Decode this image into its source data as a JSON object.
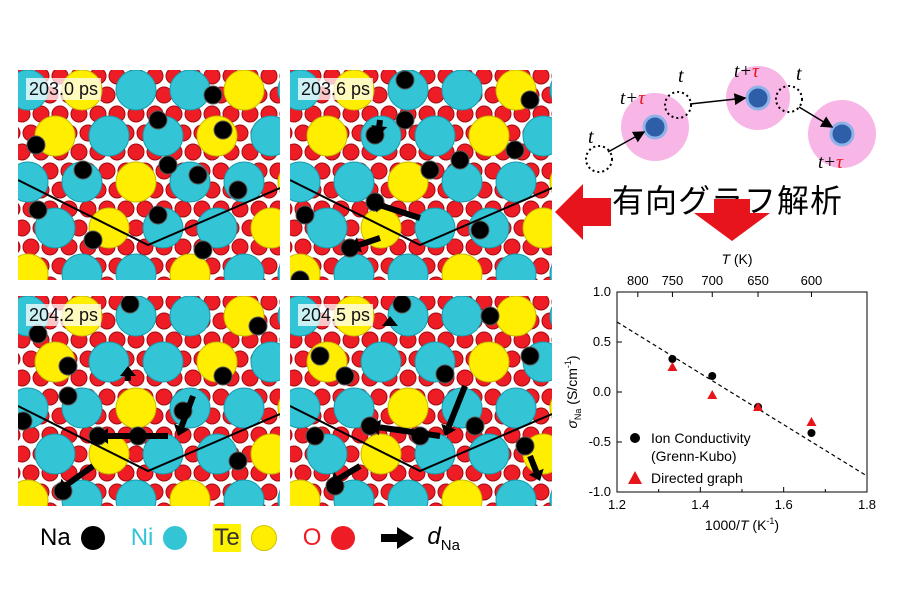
{
  "panels": [
    {
      "time": "203.0 ps"
    },
    {
      "time": "203.6 ps"
    },
    {
      "time": "204.2 ps"
    },
    {
      "time": "204.5 ps"
    }
  ],
  "legend": {
    "na": "Na",
    "ni": "Ni",
    "te": "Te",
    "o": "O",
    "d_symbol": "d",
    "d_sub": "Na",
    "colors": {
      "na": "#000000",
      "ni": "#33c5d6",
      "te": "#ffee00",
      "o": "#ee1c24"
    }
  },
  "schematic": {
    "label_t": "t",
    "label_t_tau": "t+",
    "tau": "τ",
    "colors": {
      "halo": "#f7b6e6",
      "ion": "#2e5ea8",
      "tau": "#e8141b"
    }
  },
  "graph_title": "有向グラフ解析",
  "chart_data": {
    "type": "scatter",
    "xlabel_pre": "1000/",
    "xlabel_var": "T",
    "xlabel_unit": "(K",
    "xlabel_exp": "-1",
    "xlabel_end": ")",
    "top_label_var": "T",
    "top_label_unit": "(K)",
    "ylabel_sym": "σ",
    "ylabel_sub": "Na",
    "ylabel_unit": "(S/cm",
    "ylabel_exp": "-1",
    "ylabel_end": ")",
    "xlim": [
      1.2,
      1.8
    ],
    "ylim": [
      -1.0,
      1.0
    ],
    "xticks": [
      "1.2",
      "1.4",
      "1.6",
      "1.8"
    ],
    "yticks": [
      "1.0",
      "0.5",
      "0.0",
      "-0.5",
      "-1.0"
    ],
    "top_ticks": [
      {
        "label": "800",
        "x": 1.25
      },
      {
        "label": "750",
        "x": 1.333
      },
      {
        "label": "700",
        "x": 1.4286
      },
      {
        "label": "650",
        "x": 1.5385
      },
      {
        "label": "600",
        "x": 1.6667
      }
    ],
    "series": [
      {
        "name": "Ion Conductivity",
        "name2": "(Grenn-Kubo)",
        "marker": "circle",
        "color": "#000000",
        "x": [
          1.333,
          1.4286,
          1.5385,
          1.6667
        ],
        "y": [
          0.33,
          0.16,
          -0.15,
          -0.41
        ]
      },
      {
        "name": "Directed graph",
        "marker": "triangle",
        "color": "#e8141b",
        "x": [
          1.333,
          1.4286,
          1.5385,
          1.6667
        ],
        "y": [
          0.25,
          -0.03,
          -0.15,
          -0.3
        ]
      }
    ],
    "fit_line": {
      "x": [
        1.2,
        1.8
      ],
      "y": [
        0.7,
        -0.84
      ],
      "style": "dashed"
    },
    "legend_position": "bottom-left"
  }
}
